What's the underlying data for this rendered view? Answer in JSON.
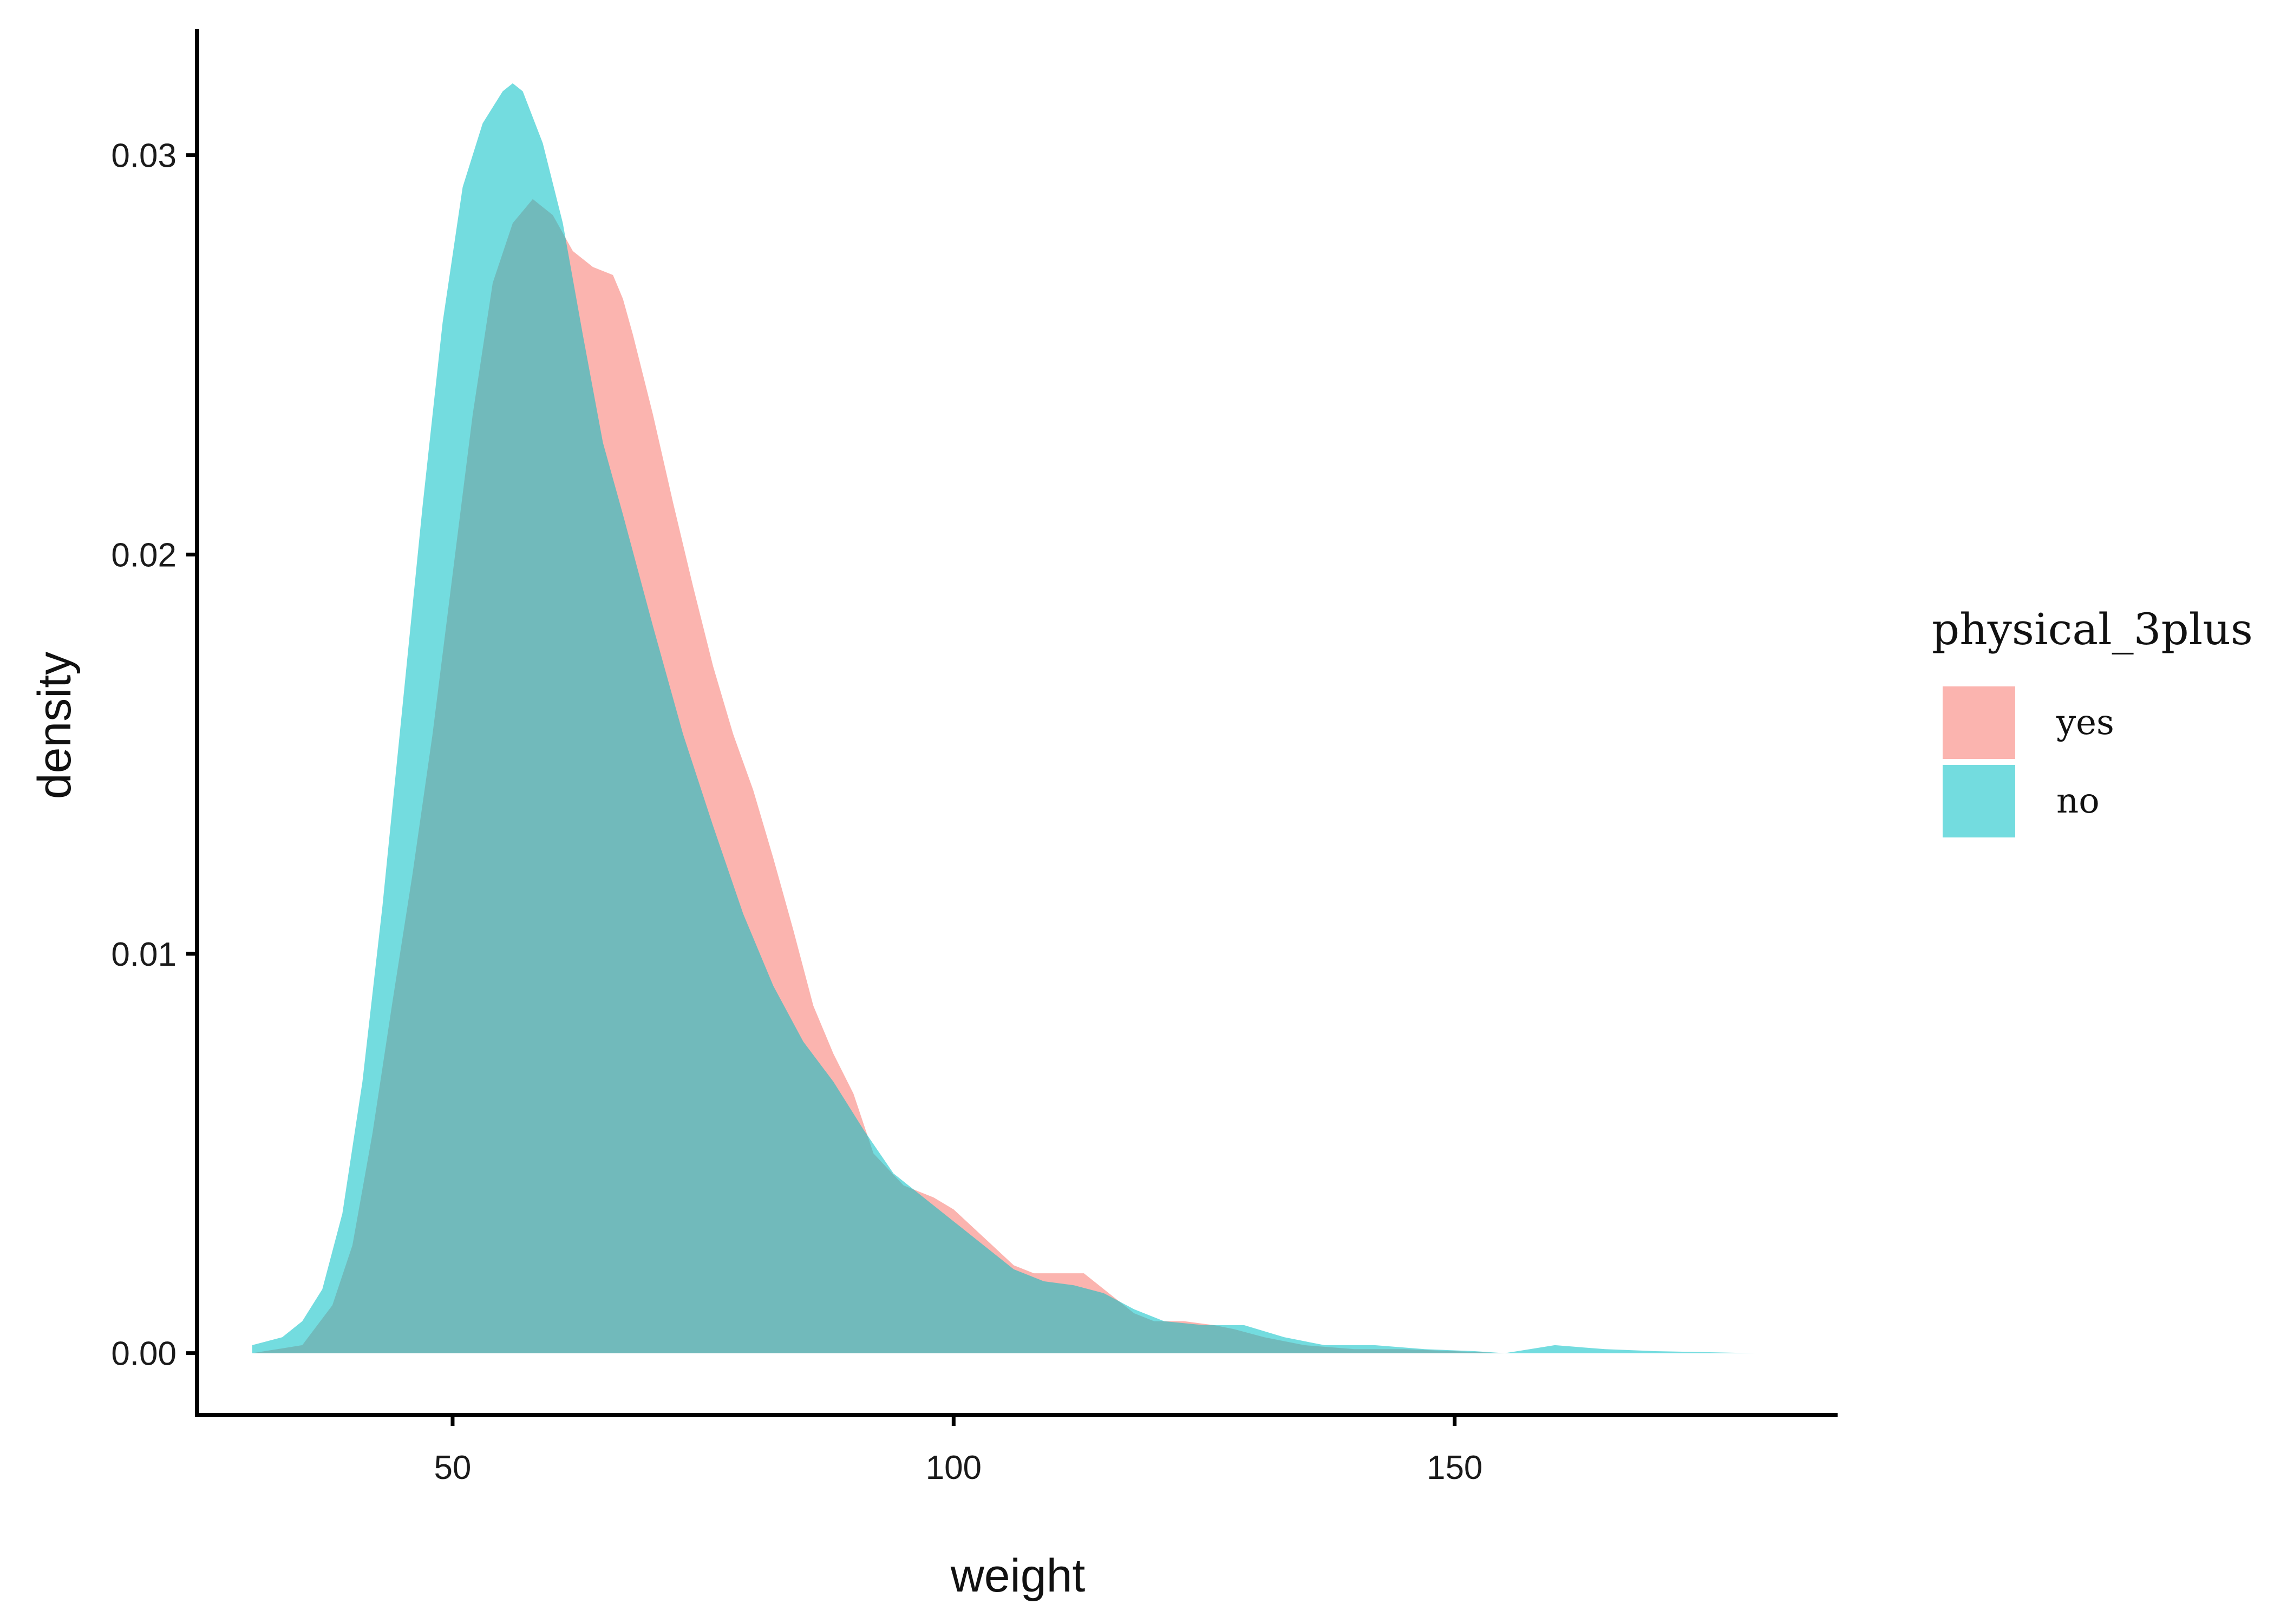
{
  "chart_data": {
    "type": "area",
    "xlabel": "weight",
    "ylabel": "density",
    "xlim": [
      24.5,
      188
    ],
    "ylim": [
      -0.00155,
      0.0331
    ],
    "x_ticks": [
      50,
      100,
      150
    ],
    "x_tick_labels": [
      "50",
      "100",
      "150"
    ],
    "y_ticks": [
      0,
      0.01,
      0.02,
      0.03
    ],
    "y_tick_labels": [
      "0.00",
      "0.01",
      "0.02",
      "0.03"
    ],
    "grid": false,
    "legend": {
      "title": "physical_3plus",
      "position": "right"
    },
    "series": [
      {
        "name": "yes",
        "color": "#F8766D",
        "points": [
          [
            30,
            0
          ],
          [
            35,
            0.0002
          ],
          [
            38,
            0.0012
          ],
          [
            40,
            0.0027
          ],
          [
            42,
            0.0055
          ],
          [
            44,
            0.0088
          ],
          [
            46,
            0.012
          ],
          [
            48,
            0.0155
          ],
          [
            50,
            0.0195
          ],
          [
            52,
            0.0235
          ],
          [
            54,
            0.0268
          ],
          [
            56,
            0.0283
          ],
          [
            58,
            0.0289
          ],
          [
            60,
            0.0285
          ],
          [
            62,
            0.0276
          ],
          [
            64,
            0.0272
          ],
          [
            66,
            0.027
          ],
          [
            67,
            0.0264
          ],
          [
            68,
            0.0255
          ],
          [
            70,
            0.0235
          ],
          [
            72,
            0.0213
          ],
          [
            74,
            0.0192
          ],
          [
            76,
            0.0172
          ],
          [
            78,
            0.0155
          ],
          [
            80,
            0.0141
          ],
          [
            82,
            0.0124
          ],
          [
            84,
            0.0106
          ],
          [
            86,
            0.0087
          ],
          [
            88,
            0.0075
          ],
          [
            90,
            0.0065
          ],
          [
            92,
            0.005
          ],
          [
            95,
            0.0042
          ],
          [
            98,
            0.0039
          ],
          [
            100,
            0.0036
          ],
          [
            103,
            0.0029
          ],
          [
            106,
            0.0022
          ],
          [
            108,
            0.002
          ],
          [
            110,
            0.002
          ],
          [
            113,
            0.002
          ],
          [
            115,
            0.0016
          ],
          [
            118,
            0.001
          ],
          [
            120,
            0.0008
          ],
          [
            123,
            0.0008
          ],
          [
            126,
            0.0007
          ],
          [
            128,
            0.0006
          ],
          [
            131,
            0.0004
          ],
          [
            135,
            0.0002
          ],
          [
            140,
            0.0001
          ],
          [
            145,
            0.0001
          ],
          [
            150,
            5e-05
          ],
          [
            155,
            0.0
          ],
          [
            160,
            0.0
          ],
          [
            170,
            0.0
          ],
          [
            180,
            0.0
          ]
        ]
      },
      {
        "name": "no",
        "color": "#00BFC4",
        "points": [
          [
            30,
            0.0002
          ],
          [
            33,
            0.0004
          ],
          [
            35,
            0.0008
          ],
          [
            37,
            0.0016
          ],
          [
            39,
            0.0035
          ],
          [
            41,
            0.0068
          ],
          [
            43,
            0.0112
          ],
          [
            45,
            0.0162
          ],
          [
            47,
            0.0212
          ],
          [
            49,
            0.0258
          ],
          [
            51,
            0.0292
          ],
          [
            53,
            0.0308
          ],
          [
            55,
            0.0316
          ],
          [
            56,
            0.0318
          ],
          [
            57,
            0.0316
          ],
          [
            59,
            0.0303
          ],
          [
            61,
            0.0283
          ],
          [
            63,
            0.0255
          ],
          [
            65,
            0.0228
          ],
          [
            67,
            0.021
          ],
          [
            70,
            0.0182
          ],
          [
            73,
            0.0155
          ],
          [
            76,
            0.0132
          ],
          [
            79,
            0.011
          ],
          [
            82,
            0.0092
          ],
          [
            85,
            0.0078
          ],
          [
            88,
            0.0068
          ],
          [
            91,
            0.0056
          ],
          [
            94,
            0.0045
          ],
          [
            97,
            0.0039
          ],
          [
            100,
            0.0033
          ],
          [
            103,
            0.0027
          ],
          [
            106,
            0.0021
          ],
          [
            109,
            0.0018
          ],
          [
            112,
            0.0017
          ],
          [
            115,
            0.0015
          ],
          [
            118,
            0.0011
          ],
          [
            121,
            0.0008
          ],
          [
            125,
            0.0007
          ],
          [
            129,
            0.0007
          ],
          [
            133,
            0.0004
          ],
          [
            137,
            0.0002
          ],
          [
            142,
            0.0002
          ],
          [
            147,
            0.0001
          ],
          [
            152,
            5e-05
          ],
          [
            155,
            0.0
          ],
          [
            160,
            0.0002
          ],
          [
            165,
            0.0001
          ],
          [
            170,
            5e-05
          ],
          [
            180,
            0.0
          ]
        ]
      }
    ]
  }
}
